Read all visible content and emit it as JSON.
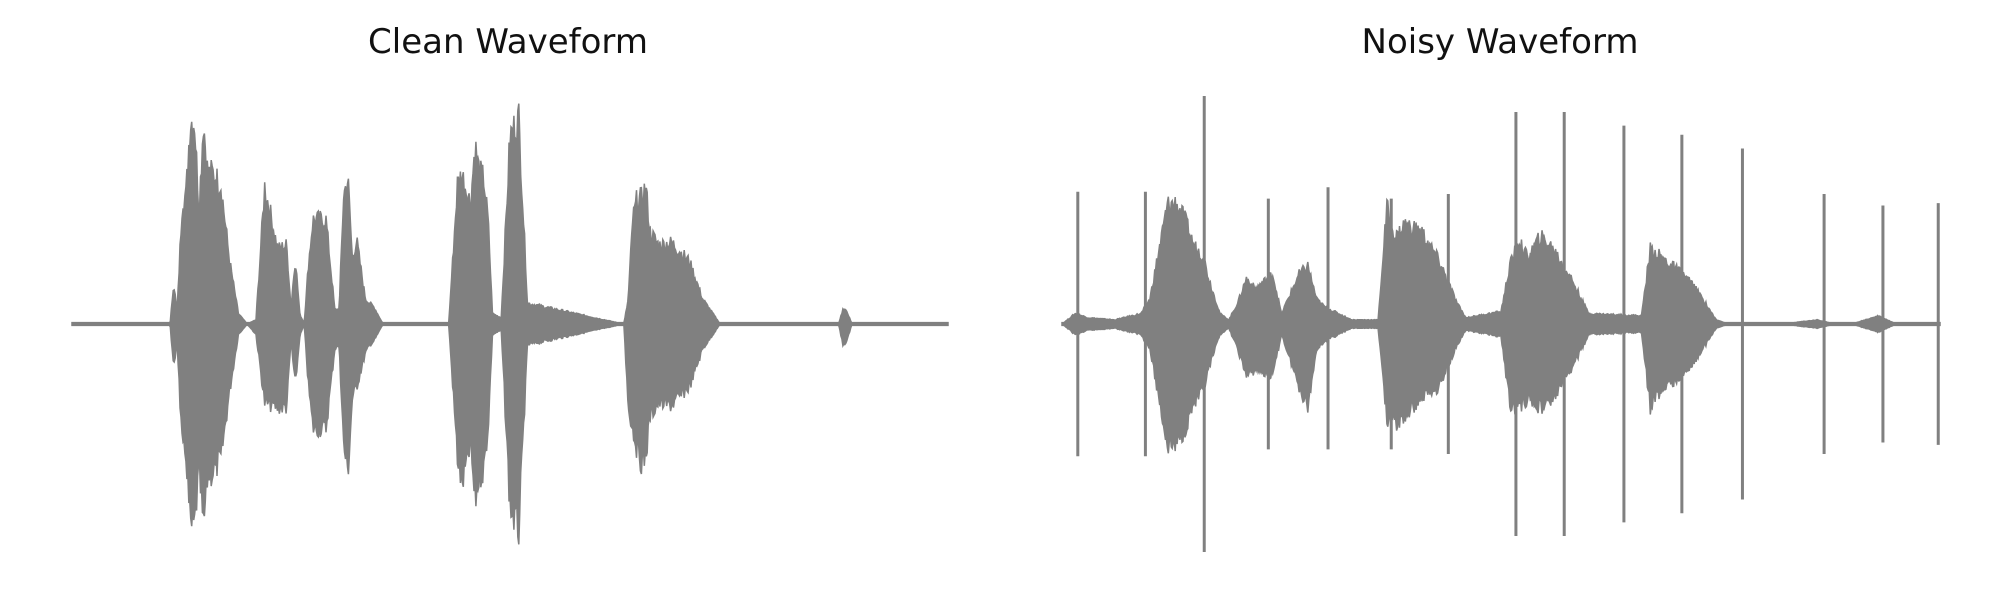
{
  "chart_data": [
    {
      "type": "area",
      "title": "Clean Waveform",
      "xlabel": "",
      "ylabel": "",
      "axes_visible": false,
      "color": "#808080",
      "ylim": [
        -1,
        1
      ],
      "xlim": [
        0,
        1
      ],
      "envelope": {
        "x": [
          0.0,
          0.112,
          0.116,
          0.12,
          0.126,
          0.13,
          0.135,
          0.14,
          0.145,
          0.15,
          0.155,
          0.16,
          0.17,
          0.18,
          0.19,
          0.2,
          0.21,
          0.22,
          0.235,
          0.245,
          0.25,
          0.255,
          0.26,
          0.265,
          0.27,
          0.275,
          0.29,
          0.3,
          0.305,
          0.31,
          0.315,
          0.32,
          0.325,
          0.335,
          0.34,
          0.345,
          0.35,
          0.355,
          0.365,
          0.37,
          0.375,
          0.385,
          0.4,
          0.43,
          0.44,
          0.445,
          0.455,
          0.46,
          0.465,
          0.47,
          0.475,
          0.48,
          0.49,
          0.5,
          0.51,
          0.52,
          0.63,
          0.635,
          0.64,
          0.645,
          0.65,
          0.655,
          0.66,
          0.67,
          0.685,
          0.705,
          0.72,
          0.74,
          0.76,
          0.77,
          0.8,
          0.81,
          0.82,
          0.83,
          0.875,
          0.88,
          0.885,
          0.89,
          0.9,
          1.0
        ],
        "upper": [
          0.0,
          0.0,
          0.2,
          0.06,
          0.6,
          0.62,
          0.98,
          0.97,
          0.55,
          0.98,
          0.72,
          0.73,
          0.67,
          0.3,
          0.05,
          0.0,
          0.02,
          0.66,
          0.36,
          0.38,
          0.08,
          0.32,
          0.05,
          0.0,
          0.29,
          0.5,
          0.5,
          0.07,
          0.07,
          0.62,
          0.7,
          0.32,
          0.4,
          0.12,
          0.1,
          0.08,
          0.04,
          0.0,
          0.0,
          0.0,
          0.0,
          0.0,
          0.0,
          0.0,
          0.67,
          0.72,
          0.58,
          0.86,
          0.73,
          0.7,
          0.5,
          0.05,
          0.03,
          0.9,
          0.99,
          0.1,
          0.0,
          0.12,
          0.5,
          0.6,
          0.6,
          0.66,
          0.44,
          0.38,
          0.39,
          0.3,
          0.12,
          0.0,
          0.0,
          0.0,
          0.0,
          0.0,
          0.0,
          0.0,
          0.0,
          0.07,
          0.06,
          0.0,
          0.0,
          0.0
        ],
        "lower": [
          0.0,
          0.0,
          -0.22,
          -0.08,
          -0.62,
          -0.62,
          -0.98,
          -0.97,
          -0.7,
          -0.99,
          -0.72,
          -0.72,
          -0.65,
          -0.32,
          -0.05,
          -0.0,
          -0.05,
          -0.38,
          -0.4,
          -0.4,
          -0.08,
          -0.3,
          -0.06,
          -0.0,
          -0.3,
          -0.5,
          -0.5,
          -0.12,
          -0.1,
          -0.58,
          -0.72,
          -0.36,
          -0.3,
          -0.14,
          -0.1,
          -0.08,
          -0.04,
          -0.0,
          -0.0,
          -0.0,
          -0.0,
          -0.0,
          -0.0,
          -0.0,
          -0.64,
          -0.78,
          -0.58,
          -0.86,
          -0.73,
          -0.7,
          -0.5,
          -0.05,
          -0.03,
          -0.88,
          -0.99,
          -0.1,
          -0.0,
          -0.4,
          -0.5,
          -0.6,
          -0.66,
          -0.64,
          -0.44,
          -0.38,
          -0.39,
          -0.3,
          -0.12,
          -0.0,
          -0.0,
          -0.0,
          -0.0,
          -0.0,
          -0.0,
          -0.0,
          -0.0,
          -0.1,
          -0.08,
          -0.0,
          -0.0,
          -0.0
        ]
      },
      "spikes": []
    },
    {
      "type": "area",
      "title": "Noisy Waveform",
      "xlabel": "",
      "ylabel": "",
      "axes_visible": false,
      "color": "#808080",
      "ylim": [
        -1,
        1
      ],
      "xlim": [
        0,
        1
      ],
      "envelope": {
        "x": [
          0.0,
          0.015,
          0.03,
          0.06,
          0.09,
          0.1,
          0.12,
          0.13,
          0.14,
          0.15,
          0.16,
          0.17,
          0.18,
          0.19,
          0.2,
          0.21,
          0.22,
          0.24,
          0.25,
          0.27,
          0.28,
          0.29,
          0.3,
          0.31,
          0.33,
          0.345,
          0.36,
          0.37,
          0.38,
          0.39,
          0.41,
          0.43,
          0.45,
          0.46,
          0.5,
          0.51,
          0.52,
          0.53,
          0.545,
          0.56,
          0.58,
          0.6,
          0.66,
          0.67,
          0.68,
          0.71,
          0.72,
          0.73,
          0.745,
          0.76,
          0.77,
          0.78,
          0.8,
          0.82,
          0.86,
          0.88,
          0.9,
          0.93,
          0.95,
          0.97,
          1.0
        ],
        "upper": [
          0.0,
          0.05,
          0.03,
          0.02,
          0.05,
          0.12,
          0.57,
          0.58,
          0.5,
          0.38,
          0.33,
          0.18,
          0.05,
          0.02,
          0.1,
          0.22,
          0.17,
          0.24,
          0.05,
          0.24,
          0.28,
          0.12,
          0.08,
          0.06,
          0.02,
          0.02,
          0.02,
          0.56,
          0.41,
          0.48,
          0.44,
          0.3,
          0.1,
          0.03,
          0.06,
          0.28,
          0.4,
          0.32,
          0.42,
          0.36,
          0.22,
          0.05,
          0.04,
          0.36,
          0.33,
          0.23,
          0.18,
          0.12,
          0.02,
          0.0,
          0.0,
          0.0,
          0.0,
          0.0,
          0.02,
          0.0,
          0.0,
          0.04,
          0.0,
          0.0,
          0.0
        ],
        "lower": [
          0.0,
          -0.05,
          -0.03,
          -0.02,
          -0.05,
          -0.12,
          -0.58,
          -0.58,
          -0.5,
          -0.38,
          -0.33,
          -0.18,
          -0.05,
          -0.02,
          -0.12,
          -0.25,
          -0.22,
          -0.25,
          -0.05,
          -0.3,
          -0.4,
          -0.12,
          -0.08,
          -0.06,
          -0.02,
          -0.02,
          -0.02,
          -0.45,
          -0.48,
          -0.45,
          -0.35,
          -0.3,
          -0.1,
          -0.03,
          -0.06,
          -0.38,
          -0.4,
          -0.36,
          -0.4,
          -0.36,
          -0.22,
          -0.05,
          -0.04,
          -0.4,
          -0.33,
          -0.23,
          -0.18,
          -0.12,
          -0.02,
          -0.0,
          -0.0,
          -0.0,
          -0.0,
          -0.0,
          -0.02,
          -0.0,
          -0.0,
          -0.04,
          -0.0,
          -0.0,
          -0.0
        ]
      },
      "spikes": [
        {
          "x": 0.018,
          "upper": 0.58,
          "lower": -0.58
        },
        {
          "x": 0.095,
          "upper": 0.58,
          "lower": -0.58
        },
        {
          "x": 0.162,
          "upper": 1.0,
          "lower": -1.0
        },
        {
          "x": 0.235,
          "upper": 0.55,
          "lower": -0.55
        },
        {
          "x": 0.303,
          "upper": 0.6,
          "lower": -0.55
        },
        {
          "x": 0.375,
          "upper": 0.55,
          "lower": -0.55
        },
        {
          "x": 0.44,
          "upper": 0.57,
          "lower": -0.57
        },
        {
          "x": 0.517,
          "upper": 0.93,
          "lower": -0.93
        },
        {
          "x": 0.572,
          "upper": 0.93,
          "lower": -0.93
        },
        {
          "x": 0.64,
          "upper": 0.87,
          "lower": -0.87
        },
        {
          "x": 0.706,
          "upper": 0.83,
          "lower": -0.83
        },
        {
          "x": 0.775,
          "upper": 0.77,
          "lower": -0.77
        },
        {
          "x": 0.868,
          "upper": 0.57,
          "lower": -0.57
        },
        {
          "x": 0.935,
          "upper": 0.52,
          "lower": -0.52
        },
        {
          "x": 0.998,
          "upper": 0.53,
          "lower": -0.53
        }
      ]
    }
  ]
}
